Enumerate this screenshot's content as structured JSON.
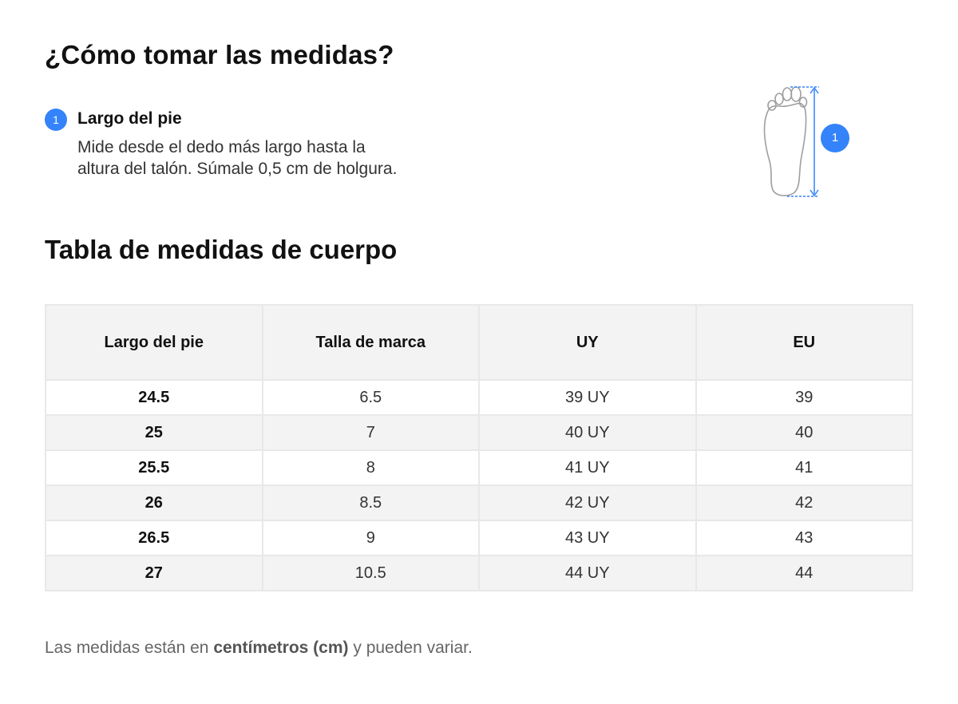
{
  "header": {
    "title": "¿Cómo tomar las medidas?"
  },
  "step": {
    "number": "1",
    "title": "Largo del pie",
    "description_line1": "Mide desde el dedo más largo hasta la",
    "description_line2": "altura del talón. Súmale 0,5 cm de holgura."
  },
  "illustration": {
    "icon": "foot-outline-icon",
    "badge": "1"
  },
  "table_section": {
    "title": "Tabla de medidas de cuerpo"
  },
  "table": {
    "headers": [
      "Largo del pie",
      "Talla de marca",
      "UY",
      "EU"
    ],
    "rows": [
      [
        "24.5",
        "6.5",
        "39 UY",
        "39"
      ],
      [
        "25",
        "7",
        "40 UY",
        "40"
      ],
      [
        "25.5",
        "8",
        "41 UY",
        "41"
      ],
      [
        "26",
        "8.5",
        "42 UY",
        "42"
      ],
      [
        "26.5",
        "9",
        "43 UY",
        "43"
      ],
      [
        "27",
        "10.5",
        "44 UY",
        "44"
      ]
    ]
  },
  "note": {
    "prefix": "Las medidas están en ",
    "emphasis": "centímetros (cm)",
    "suffix": " y pueden variar."
  },
  "colors": {
    "accent": "#3483fa",
    "row_alt": "#f3f3f3",
    "border": "#e8e8e8"
  }
}
